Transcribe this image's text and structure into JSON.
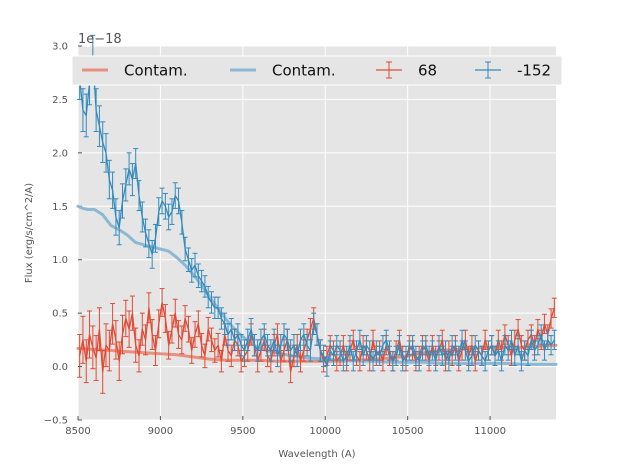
{
  "chart_data": {
    "type": "line",
    "title": "",
    "xlabel": "Wavelength (A)",
    "ylabel": "Flux (erg/s/cm^2/A)",
    "y_offset_label": "1e−18",
    "xlim": [
      8500,
      11400
    ],
    "ylim": [
      -0.5,
      3.0
    ],
    "xticks": [
      8500,
      9000,
      9500,
      10000,
      10500,
      11000
    ],
    "xtick_labels": [
      "8500",
      "9000",
      "9500",
      "10000",
      "10500",
      "11000"
    ],
    "yticks": [
      -0.5,
      0.0,
      0.5,
      1.0,
      1.5,
      2.0,
      2.5,
      3.0
    ],
    "ytick_labels": [
      "−0.5",
      "0.0",
      "0.5",
      "1.0",
      "1.5",
      "2.0",
      "2.5",
      "3.0"
    ],
    "grid": true,
    "legend_position": "top",
    "legend": [
      {
        "label": "Contam.",
        "kind": "line",
        "color": "#e8907f"
      },
      {
        "label": "Contam.",
        "kind": "line",
        "color": "#8db8d4"
      },
      {
        "label": "68",
        "kind": "errorbar",
        "color": "#e24a33"
      },
      {
        "label": "-152",
        "kind": "errorbar",
        "color": "#348abd"
      }
    ],
    "series": [
      {
        "name": "Contam. (68)",
        "kind": "line",
        "color": "#e8907f",
        "x": [
          8500,
          8600,
          8700,
          8800,
          8900,
          9000,
          9100,
          9200,
          9300,
          9400,
          9500,
          9600,
          9700,
          9800,
          9900,
          10000,
          10100,
          10200,
          10300,
          10400,
          10500,
          10600,
          10700,
          10800,
          10900,
          11000,
          11100,
          11200,
          11300,
          11400
        ],
        "y": [
          0.17,
          0.16,
          0.15,
          0.14,
          0.13,
          0.12,
          0.11,
          0.09,
          0.07,
          0.06,
          0.06,
          0.06,
          0.05,
          0.05,
          0.05,
          0.05,
          0.05,
          0.06,
          0.07,
          0.08,
          0.1,
          0.13,
          0.15,
          0.16,
          0.17,
          0.18,
          0.18,
          0.18,
          0.19,
          0.2
        ]
      },
      {
        "name": "Contam. (-152)",
        "kind": "line",
        "color": "#8db8d4",
        "x": [
          8500,
          8530,
          8560,
          8600,
          8650,
          8700,
          8750,
          8800,
          8850,
          8900,
          8950,
          9000,
          9050,
          9100,
          9150,
          9200,
          9250,
          9300,
          9350,
          9400,
          9450,
          9500,
          9550,
          9600,
          9700,
          9800,
          9900,
          10000,
          10100,
          10200,
          10300,
          10400,
          10500,
          10600,
          10700,
          10800,
          10900,
          11000,
          11100,
          11200,
          11300,
          11400
        ],
        "y": [
          1.5,
          1.48,
          1.47,
          1.47,
          1.42,
          1.32,
          1.28,
          1.23,
          1.16,
          1.14,
          1.12,
          1.1,
          1.08,
          1.02,
          0.95,
          0.86,
          0.76,
          0.65,
          0.54,
          0.44,
          0.35,
          0.28,
          0.22,
          0.17,
          0.13,
          0.1,
          0.08,
          0.07,
          0.06,
          0.05,
          0.05,
          0.04,
          0.04,
          0.04,
          0.03,
          0.03,
          0.03,
          0.03,
          0.03,
          0.02,
          0.02,
          0.02
        ]
      },
      {
        "name": "68",
        "kind": "errorbar",
        "color": "#e24a33",
        "x": [
          8510,
          8530,
          8550,
          8570,
          8590,
          8610,
          8630,
          8650,
          8670,
          8690,
          8710,
          8730,
          8750,
          8770,
          8790,
          8810,
          8830,
          8850,
          8870,
          8890,
          8910,
          8930,
          8950,
          8970,
          8990,
          9010,
          9030,
          9050,
          9070,
          9090,
          9110,
          9130,
          9150,
          9170,
          9190,
          9210,
          9230,
          9250,
          9270,
          9290,
          9310,
          9330,
          9350,
          9370,
          9390,
          9410,
          9430,
          9450,
          9470,
          9490,
          9510,
          9530,
          9550,
          9570,
          9590,
          9610,
          9630,
          9650,
          9670,
          9690,
          9710,
          9730,
          9750,
          9770,
          9790,
          9810,
          9830,
          9850,
          9870,
          9890,
          9910,
          9930,
          9950,
          9970,
          9990,
          10010,
          10030,
          10050,
          10070,
          10090,
          10110,
          10130,
          10150,
          10170,
          10190,
          10210,
          10230,
          10250,
          10270,
          10290,
          10310,
          10330,
          10350,
          10370,
          10390,
          10410,
          10430,
          10450,
          10470,
          10490,
          10510,
          10530,
          10550,
          10570,
          10590,
          10610,
          10630,
          10650,
          10670,
          10690,
          10710,
          10730,
          10750,
          10770,
          10790,
          10810,
          10830,
          10850,
          10870,
          10890,
          10910,
          10930,
          10950,
          10970,
          10990,
          11010,
          11030,
          11050,
          11070,
          11090,
          11110,
          11130,
          11150,
          11170,
          11190,
          11210,
          11230,
          11250,
          11270,
          11290,
          11310,
          11330,
          11350,
          11370,
          11390
        ],
        "y": [
          0.1,
          0.25,
          0.05,
          0.3,
          0.18,
          0.08,
          0.35,
          -0.05,
          0.2,
          0.15,
          0.4,
          0.25,
          0.05,
          0.3,
          0.45,
          0.35,
          0.5,
          0.2,
          0.1,
          0.35,
          0.25,
          0.55,
          0.3,
          0.15,
          0.4,
          0.6,
          0.45,
          0.2,
          0.35,
          0.5,
          0.3,
          0.25,
          0.45,
          0.35,
          0.15,
          0.3,
          0.4,
          0.2,
          0.1,
          0.35,
          0.25,
          0.15,
          0.2,
          0.05,
          0.3,
          0.15,
          0.1,
          0.25,
          0.2,
          0.05,
          0.1,
          0.15,
          0.3,
          0.2,
          0.05,
          0.15,
          0.25,
          0.1,
          0.05,
          0.2,
          0.3,
          0.05,
          0.15,
          0.25,
          -0.05,
          0.1,
          0.2,
          0.05,
          0.15,
          0.25,
          0.35,
          0.45,
          0.3,
          0.15,
          0.05,
          0.1,
          0.2,
          0.15,
          0.05,
          0.1,
          0.2,
          0.05,
          0.15,
          0.25,
          0.1,
          0.05,
          0.2,
          0.15,
          0.05,
          0.25,
          0.1,
          0.15,
          0.05,
          0.2,
          0.1,
          0.05,
          0.15,
          0.25,
          0.1,
          0.05,
          0.2,
          0.15,
          0.05,
          0.1,
          0.2,
          0.15,
          0.05,
          0.2,
          0.1,
          0.15,
          0.25,
          0.05,
          0.15,
          0.1,
          0.2,
          0.05,
          0.15,
          0.25,
          0.1,
          0.2,
          0.05,
          0.15,
          0.1,
          0.25,
          0.15,
          0.2,
          0.1,
          0.25,
          0.15,
          0.3,
          0.2,
          0.1,
          0.25,
          0.35,
          0.2,
          0.15,
          0.25,
          0.3,
          0.2,
          0.35,
          0.25,
          0.4,
          0.3,
          0.45,
          0.55
        ],
        "err": [
          0.2,
          0.22,
          0.2,
          0.22,
          0.2,
          0.21,
          0.2,
          0.2,
          0.2,
          0.19,
          0.19,
          0.18,
          0.18,
          0.18,
          0.17,
          0.17,
          0.16,
          0.16,
          0.15,
          0.15,
          0.14,
          0.14,
          0.14,
          0.14,
          0.13,
          0.13,
          0.13,
          0.13,
          0.13,
          0.13,
          0.13,
          0.13,
          0.12,
          0.12,
          0.12,
          0.12,
          0.12,
          0.11,
          0.11,
          0.11,
          0.11,
          0.11,
          0.11,
          0.1,
          0.1,
          0.1,
          0.1,
          0.1,
          0.1,
          0.1,
          0.1,
          0.1,
          0.1,
          0.1,
          0.1,
          0.1,
          0.1,
          0.1,
          0.1,
          0.1,
          0.1,
          0.1,
          0.1,
          0.1,
          0.1,
          0.1,
          0.1,
          0.1,
          0.1,
          0.1,
          0.1,
          0.1,
          0.1,
          0.1,
          0.1,
          0.09,
          0.09,
          0.09,
          0.09,
          0.09,
          0.09,
          0.09,
          0.09,
          0.09,
          0.09,
          0.09,
          0.09,
          0.09,
          0.09,
          0.09,
          0.09,
          0.09,
          0.09,
          0.09,
          0.09,
          0.09,
          0.09,
          0.09,
          0.09,
          0.09,
          0.09,
          0.09,
          0.09,
          0.09,
          0.09,
          0.09,
          0.09,
          0.09,
          0.09,
          0.09,
          0.09,
          0.09,
          0.09,
          0.09,
          0.09,
          0.09,
          0.09,
          0.09,
          0.09,
          0.09,
          0.09,
          0.09,
          0.09,
          0.09,
          0.09,
          0.09,
          0.09,
          0.09,
          0.09,
          0.09,
          0.09,
          0.09,
          0.09,
          0.09,
          0.09,
          0.09,
          0.09,
          0.09,
          0.09,
          0.09,
          0.09,
          0.09,
          0.09,
          0.09,
          0.09
        ]
      },
      {
        "name": "-152",
        "kind": "errorbar",
        "color": "#348abd",
        "x": [
          8510,
          8530,
          8550,
          8570,
          8590,
          8610,
          8630,
          8650,
          8670,
          8690,
          8710,
          8730,
          8750,
          8770,
          8790,
          8810,
          8830,
          8850,
          8870,
          8890,
          8910,
          8930,
          8950,
          8970,
          8990,
          9010,
          9030,
          9050,
          9070,
          9090,
          9110,
          9130,
          9150,
          9170,
          9190,
          9210,
          9230,
          9250,
          9270,
          9290,
          9310,
          9330,
          9350,
          9370,
          9390,
          9410,
          9430,
          9450,
          9470,
          9490,
          9510,
          9530,
          9550,
          9570,
          9590,
          9610,
          9630,
          9650,
          9670,
          9690,
          9710,
          9730,
          9750,
          9770,
          9790,
          9810,
          9830,
          9850,
          9870,
          9890,
          9910,
          9930,
          9950,
          9970,
          9990,
          10010,
          10030,
          10050,
          10070,
          10090,
          10110,
          10130,
          10150,
          10170,
          10190,
          10210,
          10230,
          10250,
          10270,
          10290,
          10310,
          10330,
          10350,
          10370,
          10390,
          10410,
          10430,
          10450,
          10470,
          10490,
          10510,
          10530,
          10550,
          10570,
          10590,
          10610,
          10630,
          10650,
          10670,
          10690,
          10710,
          10730,
          10750,
          10770,
          10790,
          10810,
          10830,
          10850,
          10870,
          10890,
          10910,
          10930,
          10950,
          10970,
          10990,
          11010,
          11030,
          11050,
          11070,
          11090,
          11110,
          11130,
          11150,
          11170,
          11190,
          11210,
          11230,
          11250,
          11270,
          11290,
          11310,
          11330,
          11350,
          11370,
          11390
        ],
        "y": [
          2.7,
          2.4,
          2.35,
          2.65,
          2.9,
          2.4,
          2.25,
          2.1,
          2.0,
          1.75,
          1.65,
          1.4,
          1.3,
          1.55,
          1.7,
          1.85,
          1.75,
          1.9,
          1.6,
          1.4,
          1.25,
          1.15,
          1.05,
          1.2,
          1.45,
          1.55,
          1.5,
          1.4,
          1.45,
          1.6,
          1.55,
          1.35,
          1.1,
          1.0,
          0.9,
          0.95,
          0.85,
          0.8,
          0.75,
          0.65,
          0.6,
          0.55,
          0.55,
          0.45,
          0.4,
          0.3,
          0.35,
          0.25,
          0.3,
          0.2,
          0.15,
          0.25,
          0.35,
          0.2,
          0.15,
          0.25,
          0.3,
          0.2,
          0.15,
          0.25,
          0.1,
          0.2,
          0.3,
          0.25,
          0.15,
          0.2,
          0.1,
          0.25,
          0.3,
          0.2,
          0.15,
          0.4,
          0.3,
          0.15,
          0.1,
          0.0,
          0.15,
          0.1,
          0.2,
          0.15,
          0.05,
          0.1,
          0.2,
          0.05,
          0.15,
          0.25,
          0.1,
          0.2,
          0.15,
          0.05,
          0.15,
          0.1,
          0.2,
          0.25,
          0.15,
          0.05,
          0.1,
          0.2,
          0.05,
          0.1,
          0.15,
          0.2,
          0.1,
          0.05,
          0.15,
          0.2,
          0.1,
          0.15,
          0.05,
          0.2,
          0.1,
          0.15,
          0.05,
          0.2,
          0.15,
          0.1,
          0.25,
          0.15,
          0.05,
          0.1,
          0.2,
          0.15,
          0.1,
          0.05,
          0.15,
          0.2,
          0.1,
          0.15,
          0.05,
          0.2,
          0.15,
          0.25,
          0.1,
          0.2,
          0.05,
          0.15,
          0.1,
          0.25,
          0.15,
          0.2,
          0.3,
          0.15,
          0.25,
          0.2,
          0.25
        ],
        "err": [
          0.2,
          0.2,
          0.2,
          0.2,
          0.2,
          0.2,
          0.19,
          0.19,
          0.18,
          0.18,
          0.17,
          0.17,
          0.16,
          0.16,
          0.15,
          0.15,
          0.15,
          0.14,
          0.14,
          0.14,
          0.13,
          0.13,
          0.13,
          0.13,
          0.13,
          0.12,
          0.12,
          0.12,
          0.12,
          0.12,
          0.12,
          0.11,
          0.11,
          0.11,
          0.11,
          0.11,
          0.11,
          0.1,
          0.1,
          0.1,
          0.1,
          0.1,
          0.1,
          0.1,
          0.1,
          0.1,
          0.1,
          0.1,
          0.1,
          0.1,
          0.1,
          0.1,
          0.1,
          0.1,
          0.1,
          0.1,
          0.1,
          0.1,
          0.1,
          0.1,
          0.1,
          0.1,
          0.1,
          0.1,
          0.1,
          0.1,
          0.1,
          0.1,
          0.1,
          0.1,
          0.1,
          0.1,
          0.1,
          0.1,
          0.1,
          0.09,
          0.09,
          0.09,
          0.09,
          0.09,
          0.09,
          0.09,
          0.09,
          0.09,
          0.09,
          0.09,
          0.09,
          0.09,
          0.09,
          0.09,
          0.09,
          0.09,
          0.09,
          0.09,
          0.09,
          0.09,
          0.09,
          0.09,
          0.09,
          0.09,
          0.09,
          0.09,
          0.09,
          0.09,
          0.09,
          0.09,
          0.09,
          0.09,
          0.09,
          0.09,
          0.09,
          0.09,
          0.09,
          0.09,
          0.09,
          0.09,
          0.09,
          0.09,
          0.09,
          0.09,
          0.09,
          0.09,
          0.09,
          0.09,
          0.09,
          0.09,
          0.09,
          0.09,
          0.09,
          0.09,
          0.09,
          0.09,
          0.09,
          0.09,
          0.09,
          0.09,
          0.09,
          0.09,
          0.09,
          0.09,
          0.09,
          0.09,
          0.09,
          0.09,
          0.09
        ]
      }
    ]
  }
}
